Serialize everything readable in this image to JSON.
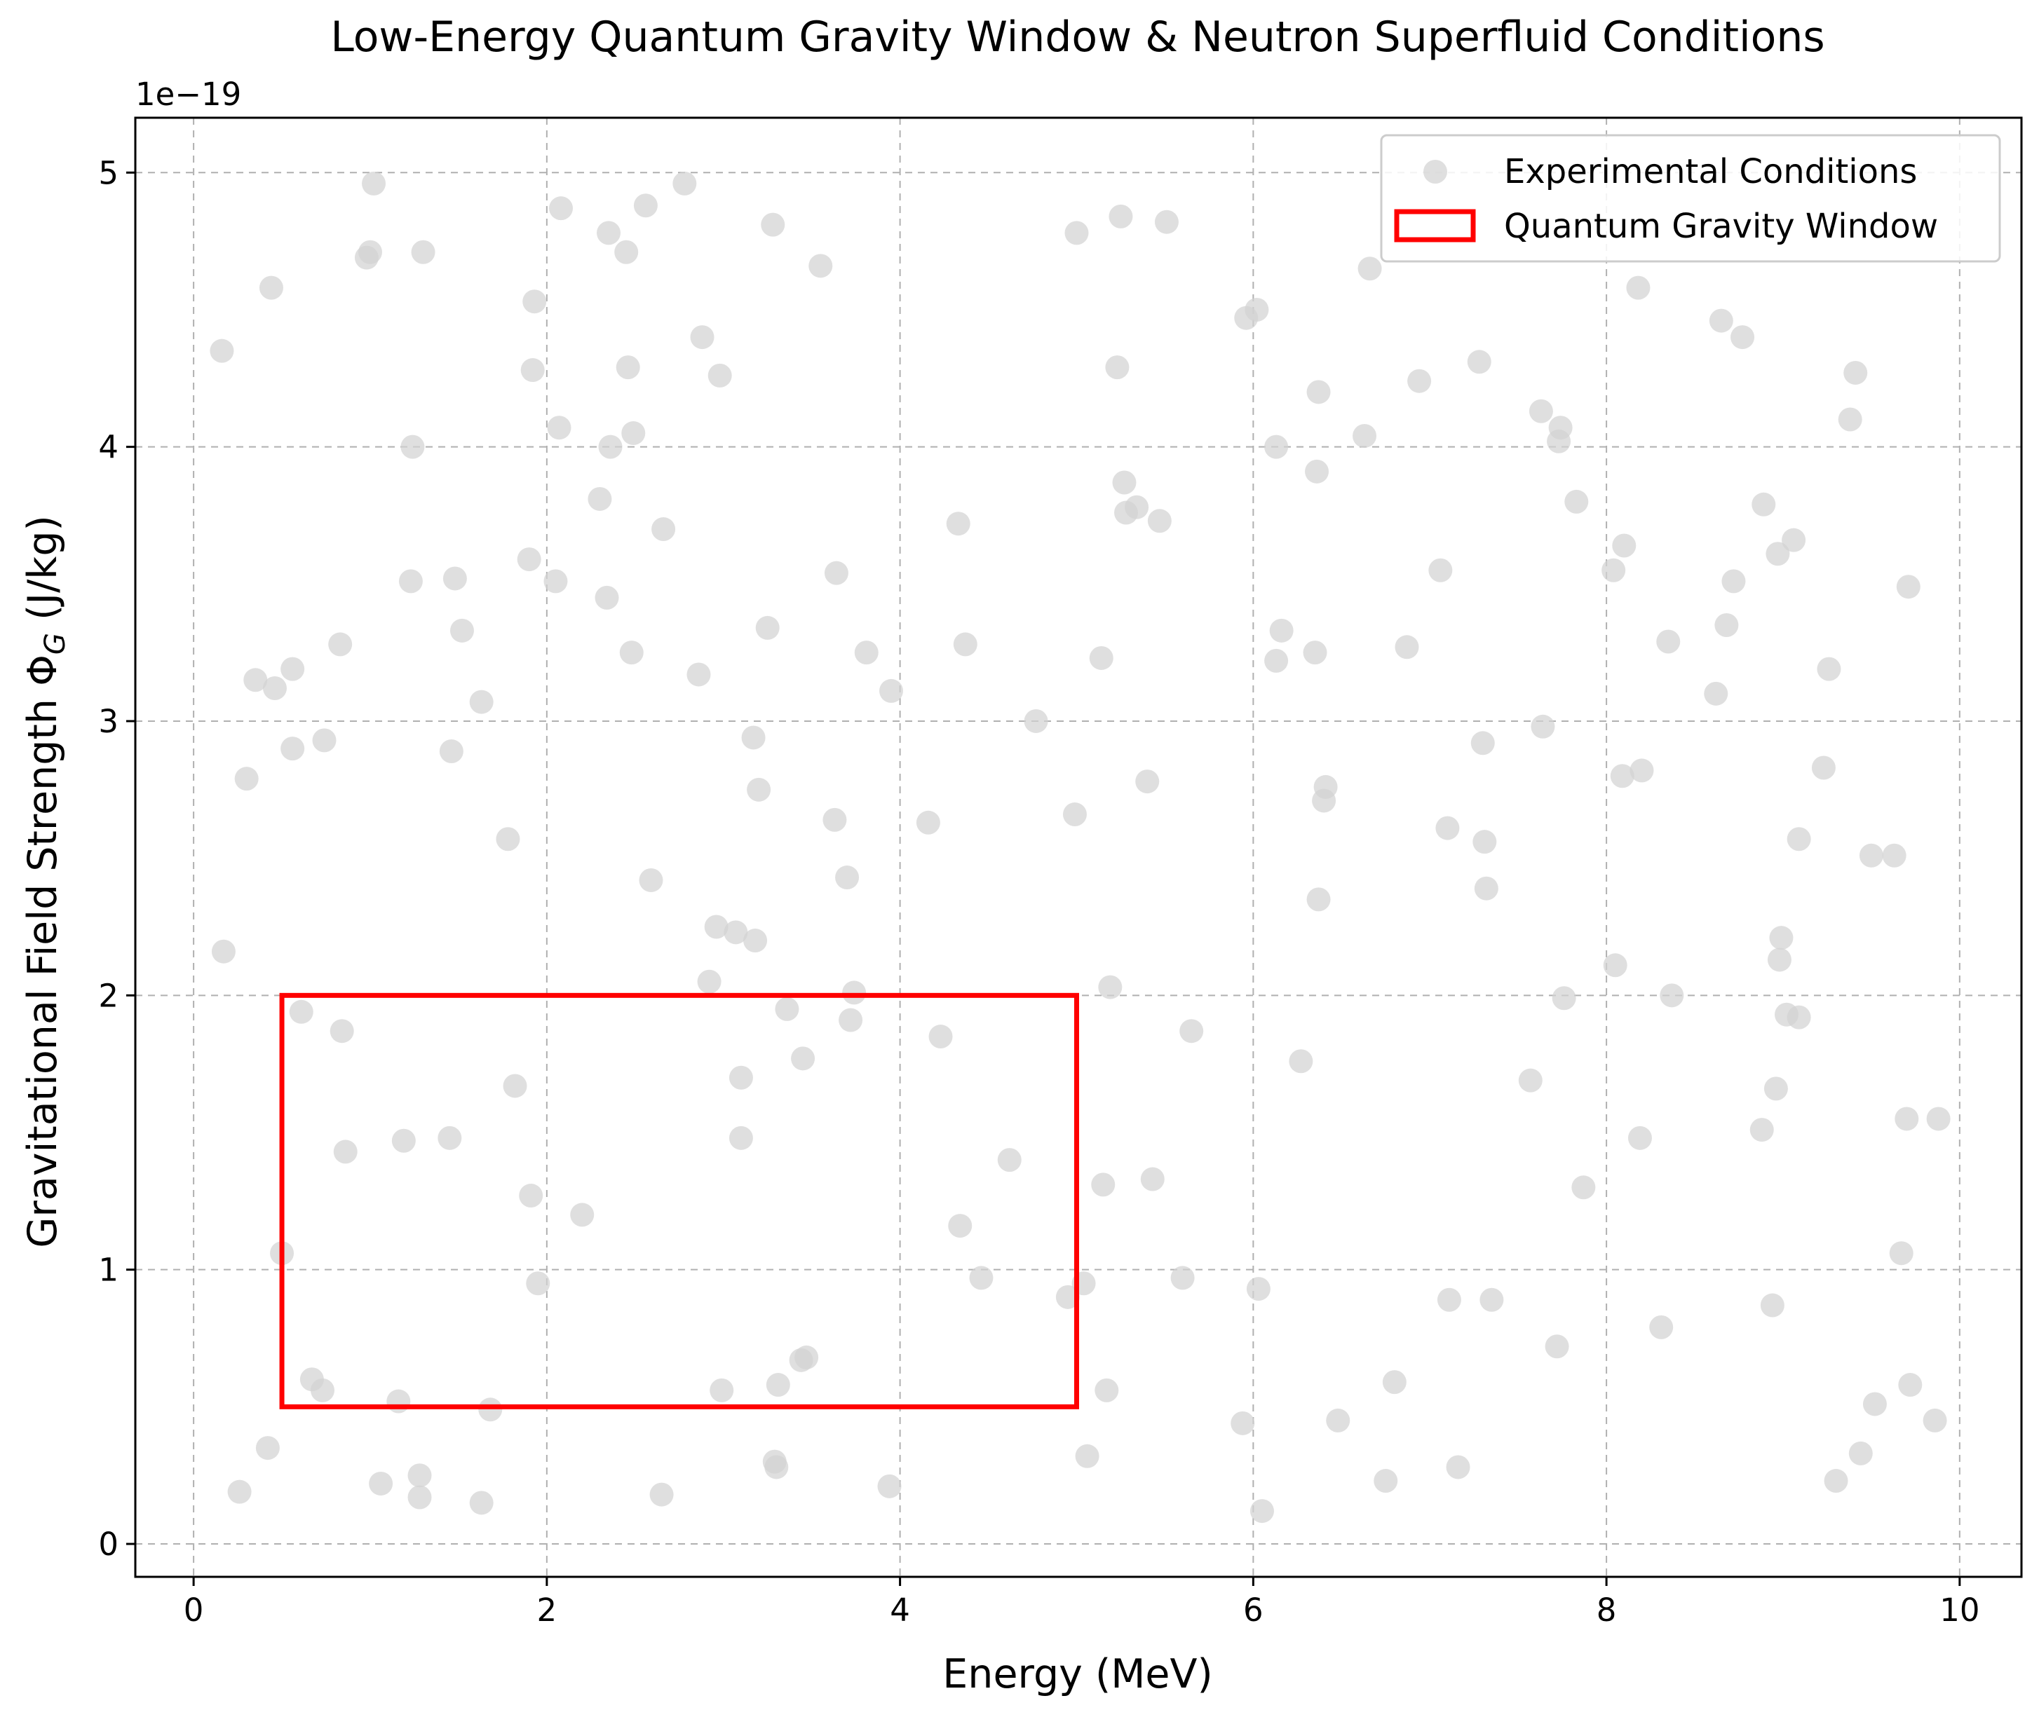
{
  "chart_data": {
    "type": "scatter",
    "title": "Low-Energy Quantum Gravity Window & Neutron Superfluid Conditions",
    "xlabel": "Energy (MeV)",
    "ylabel_main": "Gravitational Field Strength Φ",
    "ylabel_sub": "G",
    "ylabel_unit": " (J/kg)",
    "y_offset_label": "1e−19",
    "xlim": [
      -0.33,
      10.35
    ],
    "ylim": [
      -0.12,
      5.2
    ],
    "x_ticks": [
      0,
      2,
      4,
      6,
      8,
      10
    ],
    "x_tick_labels": [
      "0",
      "2",
      "4",
      "6",
      "8",
      "10"
    ],
    "y_ticks": [
      0,
      1,
      2,
      3,
      4,
      5
    ],
    "y_tick_labels": [
      "0",
      "1",
      "2",
      "3",
      "4",
      "5"
    ],
    "y_scale_note": "values ×1e−19 J/kg",
    "grid": true,
    "legend_position": "top-right",
    "legend": [
      {
        "label": "Experimental Conditions",
        "kind": "marker"
      },
      {
        "label": "Quantum Gravity Window",
        "kind": "rect"
      }
    ],
    "colors": {
      "points": "#d3d3d3",
      "window": "#ff0000",
      "grid": "#b0b0b0",
      "axes": "#000000"
    },
    "window": {
      "x": [
        0.5,
        5.0
      ],
      "y": [
        0.5,
        2.0
      ]
    },
    "series": [
      {
        "name": "Experimental Conditions",
        "points": [
          [
            0.16,
            4.35
          ],
          [
            0.17,
            2.16
          ],
          [
            0.26,
            0.19
          ],
          [
            0.3,
            2.79
          ],
          [
            0.35,
            3.15
          ],
          [
            0.42,
            0.35
          ],
          [
            0.44,
            4.58
          ],
          [
            0.46,
            3.12
          ],
          [
            0.5,
            1.06
          ],
          [
            0.56,
            3.19
          ],
          [
            0.56,
            2.9
          ],
          [
            0.61,
            1.94
          ],
          [
            0.67,
            0.6
          ],
          [
            0.73,
            0.56
          ],
          [
            0.74,
            2.93
          ],
          [
            0.83,
            3.28
          ],
          [
            0.84,
            1.87
          ],
          [
            0.86,
            1.43
          ],
          [
            0.98,
            4.69
          ],
          [
            1.0,
            4.71
          ],
          [
            1.02,
            4.96
          ],
          [
            1.06,
            0.22
          ],
          [
            1.16,
            0.52
          ],
          [
            1.19,
            1.47
          ],
          [
            1.23,
            3.51
          ],
          [
            1.24,
            4.0
          ],
          [
            1.28,
            0.25
          ],
          [
            1.28,
            0.17
          ],
          [
            1.3,
            4.71
          ],
          [
            1.45,
            1.48
          ],
          [
            1.46,
            2.89
          ],
          [
            1.48,
            3.52
          ],
          [
            1.52,
            3.33
          ],
          [
            1.63,
            3.07
          ],
          [
            1.63,
            0.15
          ],
          [
            1.68,
            0.49
          ],
          [
            1.78,
            2.57
          ],
          [
            1.82,
            1.67
          ],
          [
            1.9,
            3.59
          ],
          [
            1.91,
            1.27
          ],
          [
            1.92,
            4.28
          ],
          [
            1.93,
            4.53
          ],
          [
            1.95,
            0.95
          ],
          [
            2.05,
            3.51
          ],
          [
            2.07,
            4.07
          ],
          [
            2.08,
            4.87
          ],
          [
            2.2,
            1.2
          ],
          [
            2.3,
            3.81
          ],
          [
            2.34,
            3.45
          ],
          [
            2.35,
            4.78
          ],
          [
            2.36,
            4.0
          ],
          [
            2.45,
            4.71
          ],
          [
            2.46,
            4.29
          ],
          [
            2.48,
            3.25
          ],
          [
            2.49,
            4.05
          ],
          [
            2.56,
            4.88
          ],
          [
            2.59,
            2.42
          ],
          [
            2.65,
            0.18
          ],
          [
            2.66,
            3.7
          ],
          [
            2.78,
            4.96
          ],
          [
            2.86,
            3.17
          ],
          [
            2.88,
            4.4
          ],
          [
            2.92,
            2.05
          ],
          [
            2.96,
            2.25
          ],
          [
            2.98,
            4.26
          ],
          [
            2.99,
            0.56
          ],
          [
            3.07,
            2.23
          ],
          [
            3.1,
            1.7
          ],
          [
            3.1,
            1.48
          ],
          [
            3.17,
            2.94
          ],
          [
            3.18,
            2.2
          ],
          [
            3.2,
            2.75
          ],
          [
            3.25,
            3.34
          ],
          [
            3.28,
            4.81
          ],
          [
            3.29,
            0.3
          ],
          [
            3.3,
            0.28
          ],
          [
            3.31,
            0.58
          ],
          [
            3.36,
            1.95
          ],
          [
            3.44,
            0.67
          ],
          [
            3.45,
            1.77
          ],
          [
            3.47,
            0.68
          ],
          [
            3.55,
            4.66
          ],
          [
            3.63,
            2.64
          ],
          [
            3.64,
            3.54
          ],
          [
            3.7,
            2.43
          ],
          [
            3.72,
            1.91
          ],
          [
            3.74,
            2.01
          ],
          [
            3.81,
            3.25
          ],
          [
            3.94,
            0.21
          ],
          [
            3.95,
            3.11
          ],
          [
            4.16,
            2.63
          ],
          [
            4.23,
            1.85
          ],
          [
            4.33,
            3.72
          ],
          [
            4.34,
            1.16
          ],
          [
            4.37,
            3.28
          ],
          [
            4.46,
            0.97
          ],
          [
            4.62,
            1.4
          ],
          [
            4.77,
            3.0
          ],
          [
            4.95,
            0.9
          ],
          [
            4.99,
            2.66
          ],
          [
            5.0,
            4.78
          ],
          [
            5.04,
            0.95
          ],
          [
            5.06,
            0.32
          ],
          [
            5.14,
            3.23
          ],
          [
            5.15,
            1.31
          ],
          [
            5.17,
            0.56
          ],
          [
            5.19,
            2.03
          ],
          [
            5.23,
            4.29
          ],
          [
            5.25,
            4.84
          ],
          [
            5.27,
            3.87
          ],
          [
            5.28,
            3.76
          ],
          [
            5.34,
            3.78
          ],
          [
            5.4,
            2.78
          ],
          [
            5.43,
            1.33
          ],
          [
            5.47,
            3.73
          ],
          [
            5.51,
            4.82
          ],
          [
            5.6,
            0.97
          ],
          [
            5.65,
            1.87
          ],
          [
            5.94,
            0.44
          ],
          [
            5.96,
            4.47
          ],
          [
            6.02,
            4.5
          ],
          [
            6.03,
            0.93
          ],
          [
            6.05,
            0.12
          ],
          [
            6.13,
            4.0
          ],
          [
            6.13,
            3.22
          ],
          [
            6.16,
            3.33
          ],
          [
            6.27,
            1.76
          ],
          [
            6.35,
            3.25
          ],
          [
            6.36,
            3.91
          ],
          [
            6.37,
            4.2
          ],
          [
            6.37,
            2.35
          ],
          [
            6.4,
            2.71
          ],
          [
            6.41,
            2.76
          ],
          [
            6.48,
            0.45
          ],
          [
            6.63,
            4.04
          ],
          [
            6.66,
            4.65
          ],
          [
            6.75,
            0.23
          ],
          [
            6.8,
            0.59
          ],
          [
            6.87,
            3.27
          ],
          [
            6.94,
            4.24
          ],
          [
            7.06,
            3.55
          ],
          [
            7.1,
            2.61
          ],
          [
            7.11,
            0.89
          ],
          [
            7.16,
            0.28
          ],
          [
            7.28,
            4.31
          ],
          [
            7.3,
            2.92
          ],
          [
            7.31,
            2.56
          ],
          [
            7.32,
            2.39
          ],
          [
            7.35,
            0.89
          ],
          [
            7.57,
            1.69
          ],
          [
            7.63,
            4.13
          ],
          [
            7.64,
            2.98
          ],
          [
            7.72,
            0.72
          ],
          [
            7.73,
            4.02
          ],
          [
            7.74,
            4.07
          ],
          [
            7.76,
            1.99
          ],
          [
            7.83,
            3.8
          ],
          [
            7.87,
            1.3
          ],
          [
            8.04,
            3.55
          ],
          [
            8.05,
            2.11
          ],
          [
            8.09,
            2.8
          ],
          [
            8.1,
            3.64
          ],
          [
            8.18,
            4.58
          ],
          [
            8.19,
            1.48
          ],
          [
            8.2,
            2.82
          ],
          [
            8.31,
            0.79
          ],
          [
            8.35,
            3.29
          ],
          [
            8.37,
            2.0
          ],
          [
            8.62,
            3.1
          ],
          [
            8.65,
            4.46
          ],
          [
            8.68,
            3.35
          ],
          [
            8.72,
            3.51
          ],
          [
            8.77,
            4.4
          ],
          [
            8.88,
            1.51
          ],
          [
            8.89,
            3.79
          ],
          [
            8.94,
            0.87
          ],
          [
            8.96,
            1.66
          ],
          [
            8.97,
            3.61
          ],
          [
            8.98,
            2.13
          ],
          [
            8.99,
            2.21
          ],
          [
            9.02,
            1.93
          ],
          [
            9.06,
            3.66
          ],
          [
            9.09,
            1.92
          ],
          [
            9.09,
            2.57
          ],
          [
            9.23,
            2.83
          ],
          [
            9.26,
            3.19
          ],
          [
            9.3,
            0.23
          ],
          [
            9.38,
            4.1
          ],
          [
            9.41,
            4.27
          ],
          [
            9.44,
            0.33
          ],
          [
            9.5,
            2.51
          ],
          [
            9.52,
            0.51
          ],
          [
            9.63,
            2.51
          ],
          [
            9.67,
            1.06
          ],
          [
            9.7,
            1.55
          ],
          [
            9.71,
            3.49
          ],
          [
            9.72,
            0.58
          ],
          [
            9.86,
            0.45
          ],
          [
            9.88,
            1.55
          ]
        ]
      }
    ]
  }
}
